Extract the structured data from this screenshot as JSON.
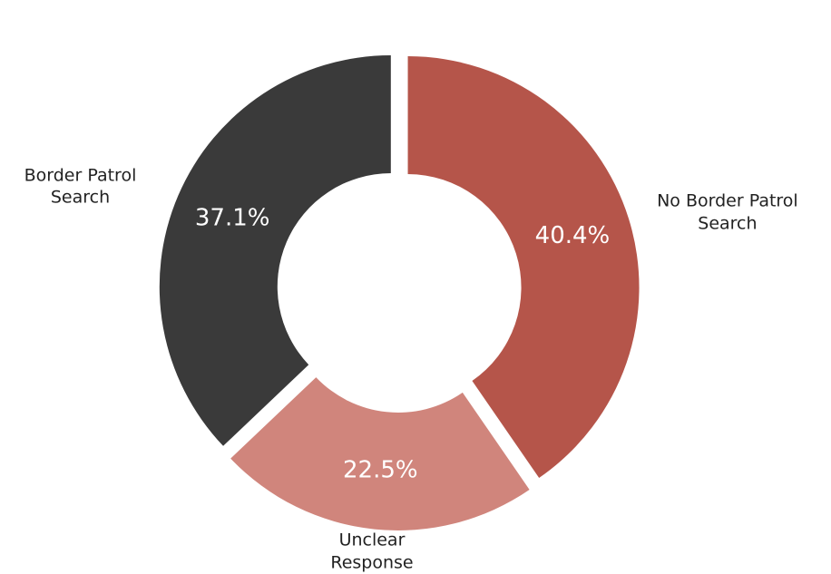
{
  "chart_data": {
    "type": "donut",
    "categories": [
      "No Border Patrol Search",
      "Unclear Response",
      "Border Patrol Search"
    ],
    "values": [
      40.4,
      22.5,
      37.1
    ],
    "value_labels": [
      "40.4%",
      "22.5%",
      "37.1%"
    ],
    "colors": [
      "#b5554a",
      "#d0857c",
      "#3a3a3a"
    ]
  }
}
